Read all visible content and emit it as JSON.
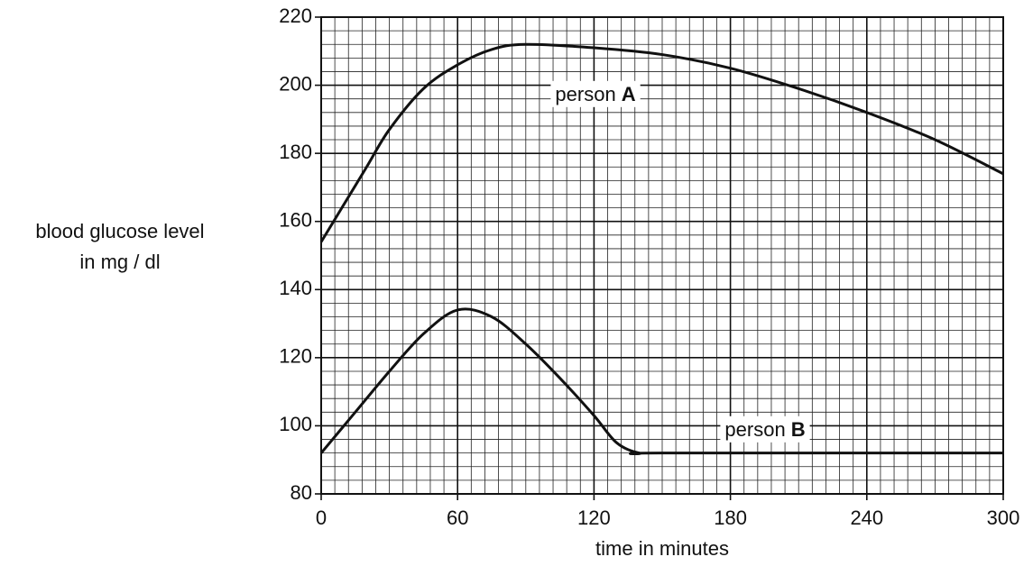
{
  "chart_data": {
    "type": "line",
    "ylabel": [
      "blood glucose level",
      "in mg / dl"
    ],
    "xlabel": "time in minutes",
    "xlim": [
      0,
      300
    ],
    "xticks": [
      0,
      60,
      120,
      180,
      240,
      300
    ],
    "xminor": 6,
    "ylim": [
      80,
      220
    ],
    "yticks": [
      80,
      100,
      120,
      140,
      160,
      180,
      200,
      220
    ],
    "yminor": 4,
    "grid": true,
    "series": [
      {
        "label": {
          "text": "person",
          "bold": "A"
        },
        "color": "#111111",
        "x": [
          0,
          10,
          20,
          30,
          45,
          60,
          75,
          90,
          120,
          150,
          180,
          210,
          240,
          270,
          300
        ],
        "values": [
          154,
          165,
          176,
          187,
          199,
          206,
          210.5,
          212,
          211,
          209,
          205,
          199,
          192,
          184,
          174
        ]
      },
      {
        "label": {
          "text": "person",
          "bold": "B"
        },
        "color": "#111111",
        "x": [
          0,
          15,
          30,
          45,
          60,
          75,
          90,
          105,
          120,
          130,
          140,
          150,
          300
        ],
        "values": [
          92,
          104,
          116,
          127,
          134,
          132,
          124,
          114,
          103,
          95,
          92,
          92,
          92
        ]
      }
    ]
  }
}
